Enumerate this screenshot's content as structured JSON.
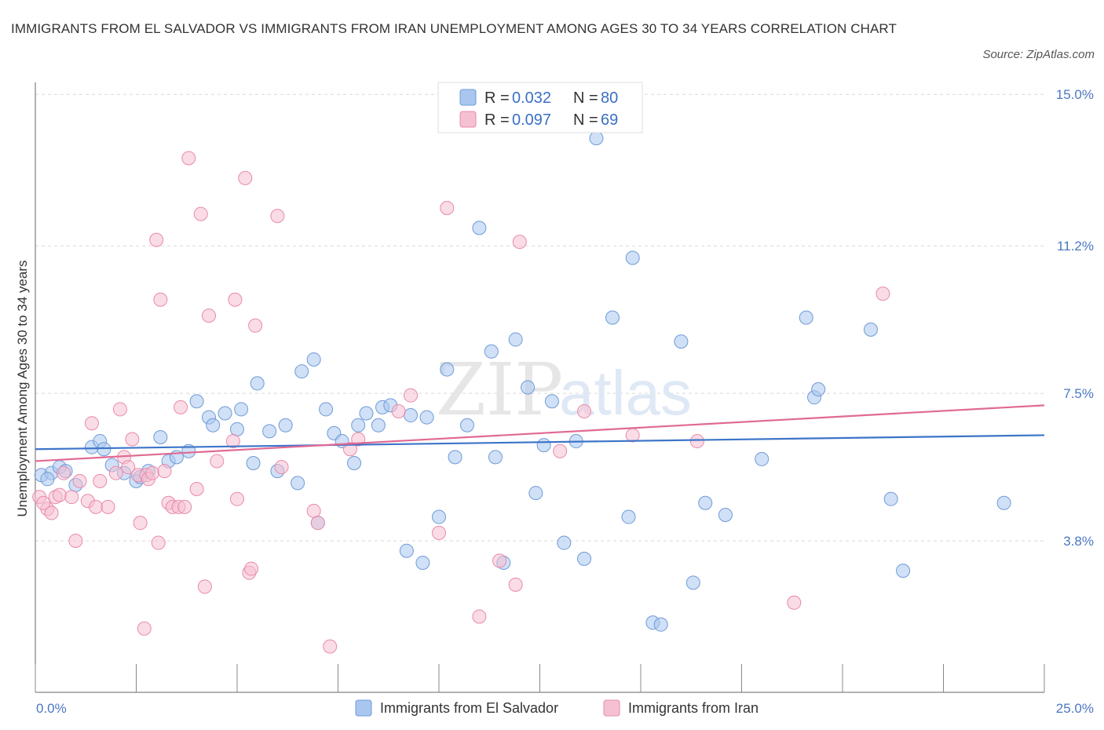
{
  "title": "IMMIGRANTS FROM EL SALVADOR VS IMMIGRANTS FROM IRAN UNEMPLOYMENT AMONG AGES 30 TO 34 YEARS CORRELATION CHART",
  "source": "Source: ZipAtlas.com",
  "watermark": {
    "zip": "ZIP",
    "atlas": "atlas"
  },
  "legend_top": [
    {
      "r_label": "R = ",
      "r_value": "0.032",
      "n_label": "N = ",
      "n_value": "80"
    },
    {
      "r_label": "R = ",
      "r_value": "0.097",
      "n_label": "N = ",
      "n_value": "69"
    }
  ],
  "chart_data": {
    "type": "scatter",
    "xlabel": "",
    "ylabel": "Unemployment Among Ages 30 to 34 years",
    "xlim": [
      0,
      25
    ],
    "ylim": [
      0,
      15.3
    ],
    "x_tick_labels": [
      {
        "value": 0,
        "label": "0.0%"
      },
      {
        "value": 25,
        "label": "25.0%"
      }
    ],
    "y_tick_labels": [
      {
        "value": 3.8,
        "label": "3.8%"
      },
      {
        "value": 7.5,
        "label": "7.5%"
      },
      {
        "value": 11.2,
        "label": "11.2%"
      },
      {
        "value": 15.0,
        "label": "15.0%"
      }
    ],
    "legend_placement": "bottom-center",
    "grid": true,
    "series": [
      {
        "name": "Immigrants from El Salvador",
        "color": "#a9c6ef",
        "stroke": "#6f9bd8",
        "trend_color": "#3c74c8",
        "trend": [
          [
            0,
            6.1
          ],
          [
            25,
            6.45
          ]
        ],
        "points": [
          [
            0.15,
            5.45
          ],
          [
            0.4,
            5.5
          ],
          [
            0.6,
            5.65
          ],
          [
            0.75,
            5.55
          ],
          [
            1.0,
            5.2
          ],
          [
            1.4,
            6.15
          ],
          [
            1.6,
            6.3
          ],
          [
            1.9,
            5.7
          ],
          [
            2.2,
            5.5
          ],
          [
            2.5,
            5.3
          ],
          [
            2.6,
            5.4
          ],
          [
            2.8,
            5.55
          ],
          [
            3.1,
            6.4
          ],
          [
            3.3,
            5.8
          ],
          [
            3.5,
            5.9
          ],
          [
            3.8,
            6.05
          ],
          [
            4.0,
            7.3
          ],
          [
            4.3,
            6.9
          ],
          [
            4.4,
            6.7
          ],
          [
            4.7,
            7.0
          ],
          [
            5.0,
            6.6
          ],
          [
            5.1,
            7.1
          ],
          [
            5.4,
            5.75
          ],
          [
            5.5,
            7.75
          ],
          [
            5.8,
            6.55
          ],
          [
            6.0,
            5.55
          ],
          [
            6.2,
            6.7
          ],
          [
            6.6,
            8.05
          ],
          [
            6.5,
            5.25
          ],
          [
            6.9,
            8.35
          ],
          [
            7.0,
            4.25
          ],
          [
            7.2,
            7.1
          ],
          [
            7.4,
            6.5
          ],
          [
            7.6,
            6.3
          ],
          [
            7.9,
            5.75
          ],
          [
            8.0,
            6.7
          ],
          [
            8.2,
            7.0
          ],
          [
            8.5,
            6.7
          ],
          [
            8.6,
            7.15
          ],
          [
            8.8,
            7.2
          ],
          [
            9.2,
            3.55
          ],
          [
            9.3,
            6.95
          ],
          [
            9.6,
            3.25
          ],
          [
            9.7,
            6.9
          ],
          [
            10.0,
            4.4
          ],
          [
            10.2,
            8.1
          ],
          [
            10.4,
            5.9
          ],
          [
            10.7,
            6.7
          ],
          [
            11.0,
            11.65
          ],
          [
            11.3,
            8.55
          ],
          [
            11.4,
            5.9
          ],
          [
            11.6,
            3.25
          ],
          [
            11.9,
            8.85
          ],
          [
            12.2,
            7.65
          ],
          [
            12.4,
            5.0
          ],
          [
            12.6,
            6.2
          ],
          [
            12.8,
            7.3
          ],
          [
            13.1,
            3.75
          ],
          [
            13.6,
            3.35
          ],
          [
            13.4,
            6.3
          ],
          [
            13.9,
            13.9
          ],
          [
            14.3,
            9.4
          ],
          [
            14.7,
            4.4
          ],
          [
            14.8,
            10.9
          ],
          [
            15.3,
            1.75
          ],
          [
            15.5,
            1.7
          ],
          [
            16.0,
            8.8
          ],
          [
            16.3,
            2.75
          ],
          [
            16.6,
            4.75
          ],
          [
            17.1,
            4.45
          ],
          [
            18.0,
            5.85
          ],
          [
            19.1,
            9.4
          ],
          [
            19.3,
            7.4
          ],
          [
            19.4,
            7.6
          ],
          [
            20.7,
            9.1
          ],
          [
            21.2,
            4.85
          ],
          [
            21.5,
            3.05
          ],
          [
            24.0,
            4.75
          ],
          [
            0.3,
            5.35
          ],
          [
            1.7,
            6.1
          ]
        ]
      },
      {
        "name": "Immigrants from Iran",
        "color": "#f5c0d2",
        "stroke": "#e88aab",
        "trend_color": "#e06a93",
        "trend": [
          [
            0,
            5.8
          ],
          [
            25,
            7.2
          ]
        ],
        "points": [
          [
            0.1,
            4.9
          ],
          [
            0.3,
            4.6
          ],
          [
            0.4,
            4.5
          ],
          [
            0.5,
            4.9
          ],
          [
            0.6,
            4.95
          ],
          [
            0.7,
            5.5
          ],
          [
            0.9,
            4.9
          ],
          [
            1.0,
            3.8
          ],
          [
            1.1,
            5.3
          ],
          [
            1.3,
            4.8
          ],
          [
            1.4,
            6.75
          ],
          [
            1.5,
            4.65
          ],
          [
            1.6,
            5.3
          ],
          [
            1.8,
            4.65
          ],
          [
            2.0,
            5.5
          ],
          [
            2.1,
            7.1
          ],
          [
            2.2,
            5.9
          ],
          [
            2.3,
            5.65
          ],
          [
            2.4,
            6.35
          ],
          [
            2.55,
            5.45
          ],
          [
            2.6,
            4.25
          ],
          [
            2.7,
            1.6
          ],
          [
            2.75,
            5.45
          ],
          [
            2.8,
            5.35
          ],
          [
            2.9,
            5.5
          ],
          [
            3.0,
            11.35
          ],
          [
            3.05,
            3.75
          ],
          [
            3.1,
            9.85
          ],
          [
            3.2,
            5.55
          ],
          [
            3.3,
            4.75
          ],
          [
            3.4,
            4.65
          ],
          [
            3.55,
            4.65
          ],
          [
            3.6,
            7.15
          ],
          [
            3.7,
            4.65
          ],
          [
            3.8,
            13.4
          ],
          [
            4.0,
            5.1
          ],
          [
            4.1,
            12.0
          ],
          [
            4.2,
            2.65
          ],
          [
            4.3,
            9.45
          ],
          [
            4.5,
            5.8
          ],
          [
            4.9,
            6.3
          ],
          [
            4.95,
            9.85
          ],
          [
            5.0,
            4.85
          ],
          [
            5.2,
            12.9
          ],
          [
            5.3,
            3.0
          ],
          [
            5.35,
            3.1
          ],
          [
            5.45,
            9.2
          ],
          [
            6.0,
            11.95
          ],
          [
            6.1,
            5.65
          ],
          [
            6.9,
            4.55
          ],
          [
            7.0,
            4.25
          ],
          [
            7.3,
            1.15
          ],
          [
            7.8,
            6.1
          ],
          [
            8.0,
            6.35
          ],
          [
            9.0,
            7.05
          ],
          [
            9.3,
            7.45
          ],
          [
            10.0,
            4.0
          ],
          [
            10.2,
            12.15
          ],
          [
            11.0,
            1.9
          ],
          [
            11.5,
            3.3
          ],
          [
            11.9,
            2.7
          ],
          [
            12.0,
            11.3
          ],
          [
            13.0,
            6.05
          ],
          [
            13.6,
            7.05
          ],
          [
            14.8,
            6.45
          ],
          [
            16.4,
            6.3
          ],
          [
            18.8,
            2.25
          ],
          [
            21.0,
            10.0
          ],
          [
            0.2,
            4.75
          ]
        ]
      }
    ]
  },
  "bottom_legend": [
    {
      "label": "Immigrants from El Salvador"
    },
    {
      "label": "Immigrants from Iran"
    }
  ]
}
